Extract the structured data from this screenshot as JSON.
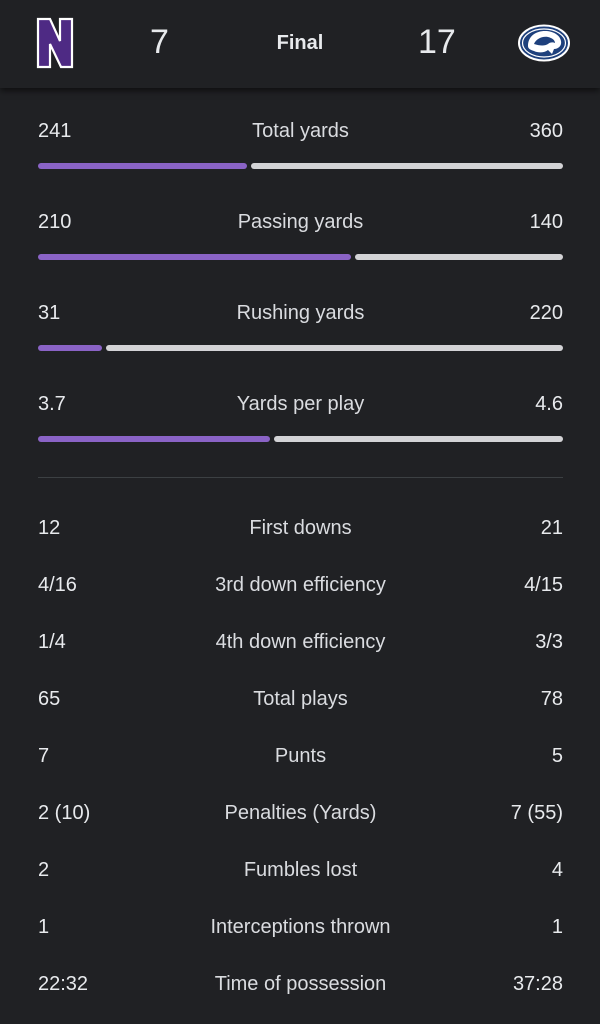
{
  "header": {
    "home_logo_letter": "N",
    "home_score": "7",
    "status": "Final",
    "away_score": "17",
    "home_logo_icon": "northwestern-n-logo-icon",
    "away_logo_icon": "penn-state-lion-logo-icon",
    "home_color": "#4e2a84",
    "away_color": "#1e407c"
  },
  "bar_stats": [
    {
      "name": "Total yards",
      "home": "241",
      "away": "360",
      "home_value": 241,
      "away_value": 360
    },
    {
      "name": "Passing yards",
      "home": "210",
      "away": "140",
      "home_value": 210,
      "away_value": 140
    },
    {
      "name": "Rushing yards",
      "home": "31",
      "away": "220",
      "home_value": 31,
      "away_value": 220
    },
    {
      "name": "Yards per play",
      "home": "3.7",
      "away": "4.6",
      "home_value": 3.7,
      "away_value": 4.6
    }
  ],
  "row_stats": [
    {
      "name": "First downs",
      "home": "12",
      "away": "21"
    },
    {
      "name": "3rd down efficiency",
      "home": "4/16",
      "away": "4/15"
    },
    {
      "name": "4th down efficiency",
      "home": "1/4",
      "away": "3/3"
    },
    {
      "name": "Total plays",
      "home": "65",
      "away": "78"
    },
    {
      "name": "Punts",
      "home": "7",
      "away": "5"
    },
    {
      "name": "Penalties (Yards)",
      "home": "2 (10)",
      "away": "7 (55)"
    },
    {
      "name": "Fumbles lost",
      "home": "2",
      "away": "4"
    },
    {
      "name": "Interceptions thrown",
      "home": "1",
      "away": "1"
    },
    {
      "name": "Time of possession",
      "home": "22:32",
      "away": "37:28"
    }
  ],
  "colors": {
    "home_bar": "#8a63c6",
    "away_bar": "#d3d3d6",
    "background": "#202124"
  }
}
